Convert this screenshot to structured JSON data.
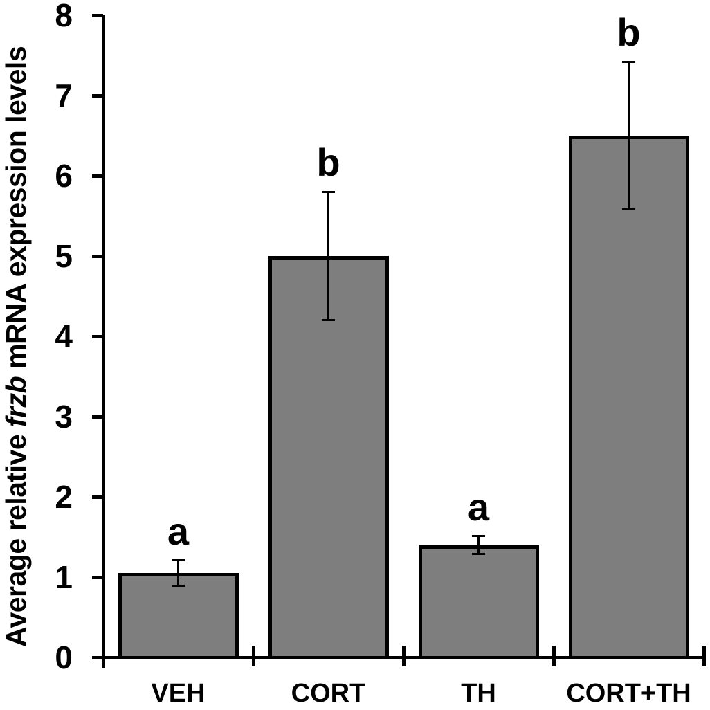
{
  "chart_data": {
    "type": "bar",
    "title": "",
    "categories": [
      "VEH",
      "CORT",
      "TH",
      "CORT+TH"
    ],
    "values": [
      1.05,
      5.0,
      1.4,
      6.5
    ],
    "errors": [
      0.16,
      0.8,
      0.11,
      0.92
    ],
    "sig_letters": [
      "a",
      "b",
      "a",
      "b"
    ],
    "ylabel": "Average relative frzb mRNA expression levels",
    "ylabel_parts": [
      {
        "text": "Average relative ",
        "italic": false
      },
      {
        "text": "frzb",
        "italic": true
      },
      {
        "text": " mRNA expression levels",
        "italic": false
      }
    ],
    "xlabel": "",
    "ylim": [
      0,
      8
    ],
    "yticks": [
      0,
      1,
      2,
      3,
      4,
      5,
      6,
      7,
      8
    ],
    "grid": false,
    "legend": null,
    "error_bars": true,
    "colors": {
      "bar_fill": "#7e7e7e",
      "bar_border": "#000000",
      "axis": "#000000",
      "text": "#000000",
      "background": "#ffffff"
    }
  }
}
